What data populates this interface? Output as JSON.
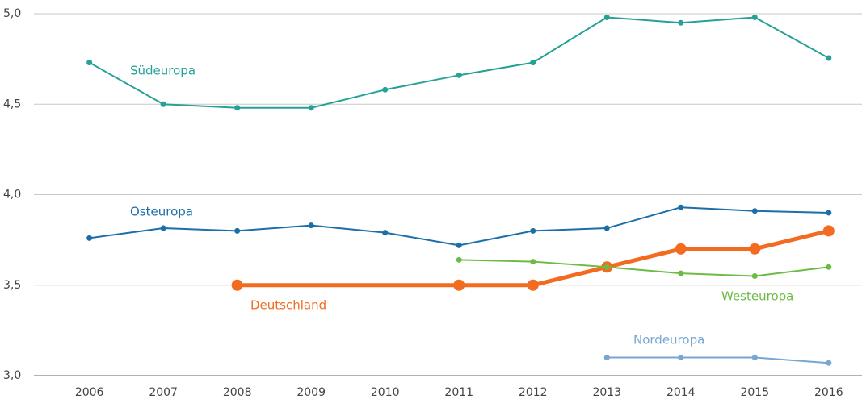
{
  "chart_data": {
    "type": "line",
    "xlim": [
      2005.25,
      2016.45
    ],
    "xticks": [
      2006,
      2007,
      2008,
      2009,
      2010,
      2011,
      2012,
      2013,
      2014,
      2015,
      2016
    ],
    "ylim": [
      3.0,
      5.0
    ],
    "yticks": [
      {
        "value": 3.0,
        "label": "3,0"
      },
      {
        "value": 3.5,
        "label": "3,5"
      },
      {
        "value": 4.0,
        "label": "4,0"
      },
      {
        "value": 4.5,
        "label": "4,5"
      },
      {
        "value": 5.0,
        "label": "5,0"
      }
    ],
    "grid": true,
    "series": [
      {
        "name": "Südeuropa",
        "color": "#26a196",
        "x": [
          2006,
          2007,
          2008,
          2009,
          2010,
          2011,
          2012,
          2013,
          2014,
          2015,
          2016
        ],
        "values": [
          4.73,
          4.5,
          4.48,
          4.48,
          4.58,
          4.66,
          4.73,
          4.98,
          4.95,
          4.98,
          4.755
        ]
      },
      {
        "name": "Osteuropa",
        "color": "#1a6fa8",
        "x": [
          2006,
          2007,
          2008,
          2009,
          2010,
          2011,
          2012,
          2013,
          2014,
          2015,
          2016
        ],
        "values": [
          3.76,
          3.815,
          3.8,
          3.83,
          3.79,
          3.72,
          3.8,
          3.815,
          3.93,
          3.91,
          3.9
        ]
      },
      {
        "name": "Deutschland",
        "color": "#f26b21",
        "x": [
          2008,
          2011,
          2012,
          2013,
          2014,
          2015,
          2016
        ],
        "values": [
          3.5,
          3.5,
          3.5,
          3.6,
          3.7,
          3.7,
          3.8
        ]
      },
      {
        "name": "Westeuropa",
        "color": "#6dbb45",
        "x": [
          2011,
          2012,
          2013,
          2014,
          2015,
          2016
        ],
        "values": [
          3.64,
          3.63,
          3.6,
          3.565,
          3.55,
          3.6
        ]
      },
      {
        "name": "Nordeuropa",
        "color": "#78a6d2",
        "x": [
          2013,
          2014,
          2015,
          2016
        ],
        "values": [
          3.1,
          3.1,
          3.1,
          3.07
        ]
      }
    ]
  }
}
